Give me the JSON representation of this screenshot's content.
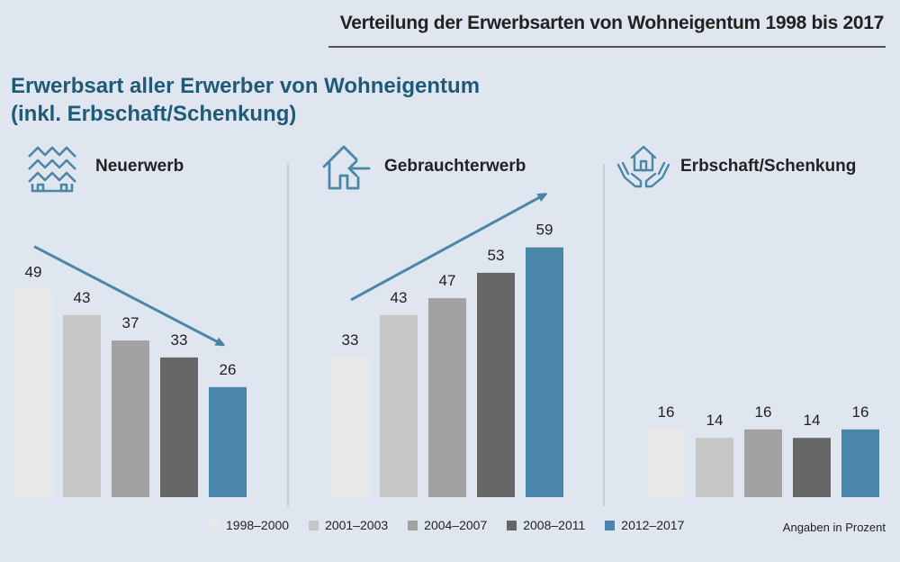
{
  "header": {
    "title": "Verteilung der Erwerbsarten von Wohneigentum 1998 bis 2017"
  },
  "main_title": {
    "line1": "Erwerbsart aller Erwerber von Wohneigentum",
    "line2": "(inkl. Erbschaft/Schenkung)"
  },
  "unit_note": "Angaben in Prozent",
  "colors": {
    "background": "#dfe6ef",
    "accent": "#4a86a8",
    "title": "#1f5b79"
  },
  "chart_data": {
    "type": "bar",
    "categories": [
      "Neuerwerb",
      "Gebrauchterwerb",
      "Erbschaft/Schenkung"
    ],
    "series": [
      {
        "name": "1998–2000",
        "values": [
          49,
          33,
          16
        ],
        "color": "#e8e8e8"
      },
      {
        "name": "2001–2003",
        "values": [
          43,
          43,
          14
        ],
        "color": "#c6c6c6"
      },
      {
        "name": "2004–2007",
        "values": [
          37,
          47,
          16
        ],
        "color": "#a2a2a2"
      },
      {
        "name": "2008–2011",
        "values": [
          33,
          53,
          14
        ],
        "color": "#666666"
      },
      {
        "name": "2012–2017",
        "values": [
          26,
          59,
          16
        ],
        "color": "#4a86a8"
      }
    ],
    "group_icons": [
      "houses-icon",
      "house-arrow-icon",
      "hands-house-icon"
    ],
    "trend_arrows": [
      "down",
      "up",
      "none"
    ],
    "ylim": [
      0,
      60
    ],
    "grid": false,
    "legend_position": "bottom"
  }
}
